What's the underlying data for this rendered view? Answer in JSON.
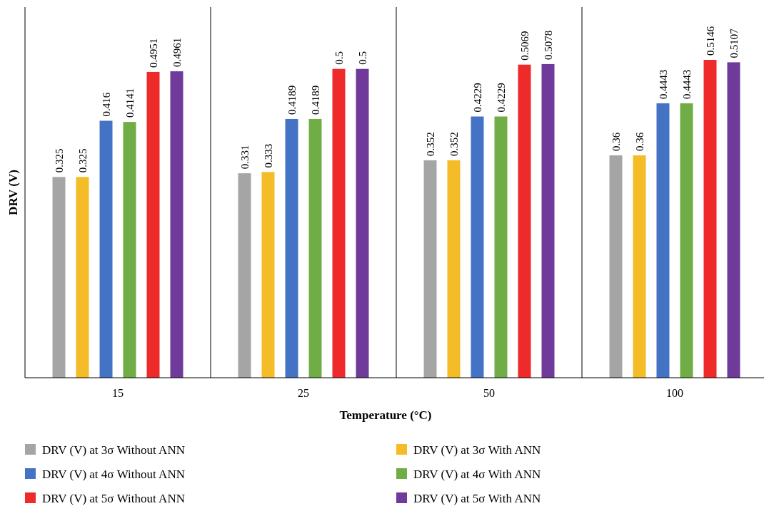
{
  "chart_data": {
    "type": "bar",
    "xlabel": "Temperature (°C)",
    "ylabel": "DRV (V)",
    "categories": [
      "15",
      "25",
      "50",
      "100"
    ],
    "ylim": [
      0,
      0.6
    ],
    "data_labels": true,
    "legend": "bottom",
    "series": [
      {
        "name": "DRV (V) at 3σ Without ANN",
        "color": "#a5a5a5",
        "values": [
          0.325,
          0.331,
          0.352,
          0.36
        ]
      },
      {
        "name": "DRV (V) at 3σ With ANN",
        "color": "#f4bc27",
        "values": [
          0.325,
          0.333,
          0.352,
          0.36
        ]
      },
      {
        "name": "DRV (V) at 4σ Without ANN",
        "color": "#4472c4",
        "values": [
          0.416,
          0.4189,
          0.4229,
          0.4443
        ]
      },
      {
        "name": "DRV (V) at 4σ With ANN",
        "color": "#70ad47",
        "values": [
          0.4141,
          0.4189,
          0.4229,
          0.4443
        ]
      },
      {
        "name": "DRV (V) at 5σ Without ANN",
        "color": "#ee2a2a",
        "values": [
          0.4951,
          0.5,
          0.5069,
          0.5146
        ]
      },
      {
        "name": "DRV (V) at 5σ With ANN",
        "color": "#6f3a9a",
        "values": [
          0.4961,
          0.5,
          0.5078,
          0.5107
        ]
      }
    ]
  }
}
